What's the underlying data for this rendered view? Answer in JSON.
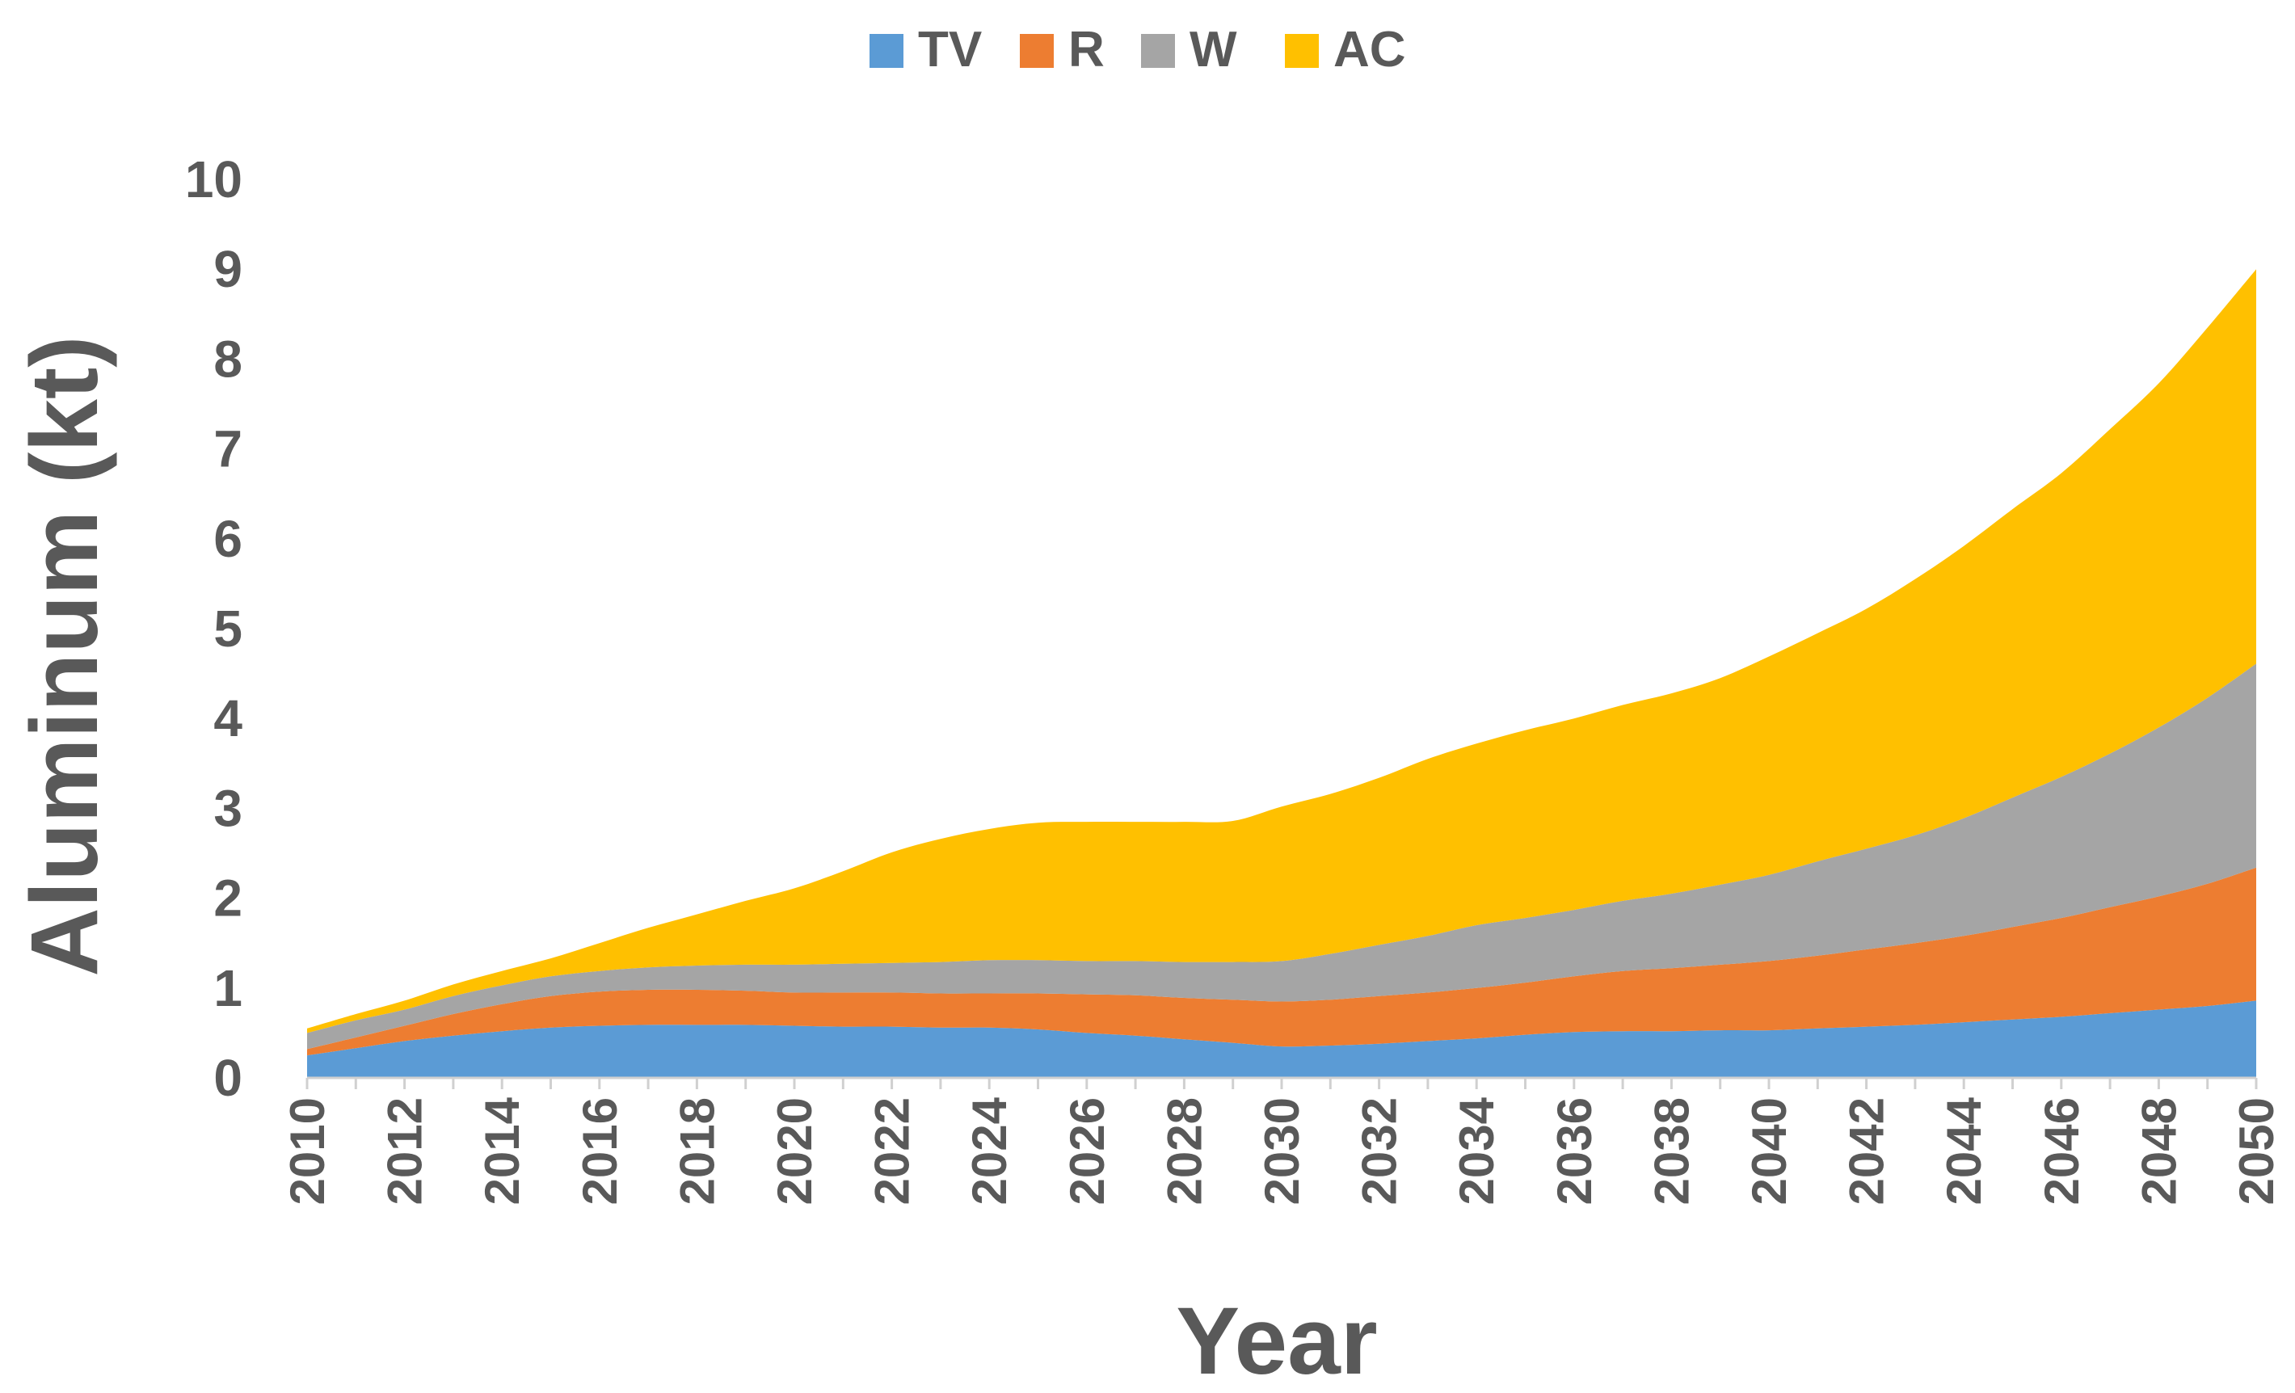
{
  "chart_data": {
    "type": "area",
    "stacked": true,
    "title": "",
    "xlabel": "Year",
    "ylabel": "Aluminum (kt)",
    "ylim": [
      0,
      10
    ],
    "yticks": [
      0,
      1,
      2,
      3,
      4,
      5,
      6,
      7,
      8,
      9,
      10
    ],
    "grid": false,
    "legend_position": "top",
    "x": [
      2010,
      2011,
      2012,
      2013,
      2014,
      2015,
      2016,
      2017,
      2018,
      2019,
      2020,
      2021,
      2022,
      2023,
      2024,
      2025,
      2026,
      2027,
      2028,
      2029,
      2030,
      2031,
      2032,
      2033,
      2034,
      2035,
      2036,
      2037,
      2038,
      2039,
      2040,
      2041,
      2042,
      2043,
      2044,
      2045,
      2046,
      2047,
      2048,
      2049,
      2050
    ],
    "xtick_labels": [
      "2010",
      "2012",
      "2014",
      "2016",
      "2018",
      "2020",
      "2022",
      "2024",
      "2026",
      "2028",
      "2030",
      "2032",
      "2034",
      "2036",
      "2038",
      "2040",
      "2042",
      "2044",
      "2046",
      "2048",
      "2050"
    ],
    "series": [
      {
        "name": "TV",
        "color": "#5b9bd5",
        "values": [
          0.25,
          0.33,
          0.41,
          0.47,
          0.52,
          0.56,
          0.58,
          0.59,
          0.59,
          0.59,
          0.58,
          0.57,
          0.57,
          0.56,
          0.56,
          0.54,
          0.5,
          0.47,
          0.43,
          0.39,
          0.35,
          0.36,
          0.38,
          0.41,
          0.44,
          0.48,
          0.51,
          0.52,
          0.52,
          0.53,
          0.53,
          0.55,
          0.57,
          0.59,
          0.62,
          0.65,
          0.68,
          0.72,
          0.76,
          0.8,
          0.86
        ]
      },
      {
        "name": "R",
        "color": "#ed7d31",
        "values": [
          0.07,
          0.12,
          0.17,
          0.24,
          0.3,
          0.35,
          0.38,
          0.39,
          0.39,
          0.38,
          0.37,
          0.38,
          0.38,
          0.38,
          0.38,
          0.4,
          0.43,
          0.45,
          0.46,
          0.48,
          0.5,
          0.51,
          0.53,
          0.54,
          0.56,
          0.58,
          0.62,
          0.67,
          0.7,
          0.73,
          0.77,
          0.81,
          0.86,
          0.91,
          0.96,
          1.03,
          1.1,
          1.18,
          1.26,
          1.36,
          1.48
        ]
      },
      {
        "name": "W",
        "color": "#a5a5a5",
        "values": [
          0.18,
          0.19,
          0.18,
          0.2,
          0.21,
          0.22,
          0.23,
          0.25,
          0.27,
          0.29,
          0.31,
          0.32,
          0.33,
          0.35,
          0.37,
          0.37,
          0.37,
          0.38,
          0.4,
          0.42,
          0.45,
          0.51,
          0.57,
          0.63,
          0.7,
          0.72,
          0.74,
          0.78,
          0.83,
          0.89,
          0.96,
          1.05,
          1.12,
          1.2,
          1.31,
          1.44,
          1.57,
          1.71,
          1.88,
          2.07,
          2.27
        ]
      },
      {
        "name": "AC",
        "color": "#ffc000",
        "values": [
          0.05,
          0.07,
          0.1,
          0.13,
          0.16,
          0.2,
          0.31,
          0.44,
          0.57,
          0.71,
          0.85,
          1.03,
          1.23,
          1.37,
          1.46,
          1.53,
          1.55,
          1.55,
          1.56,
          1.57,
          1.72,
          1.78,
          1.86,
          1.97,
          2.02,
          2.09,
          2.13,
          2.18,
          2.23,
          2.3,
          2.43,
          2.54,
          2.67,
          2.85,
          3.03,
          3.21,
          3.38,
          3.61,
          3.83,
          4.12,
          4.39
        ]
      }
    ]
  }
}
